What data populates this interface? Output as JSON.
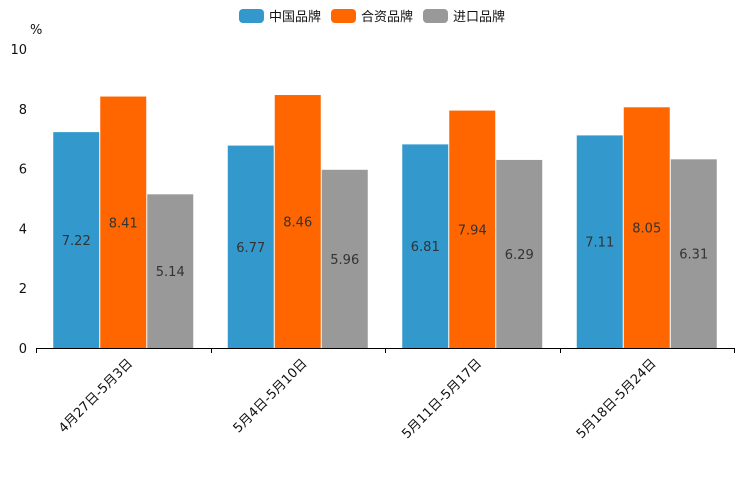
{
  "chart_data": {
    "type": "bar",
    "title": "",
    "xlabel": "",
    "ylabel": "",
    "unit": "%",
    "ylim": [
      0,
      10
    ],
    "yticks": [
      0,
      2,
      4,
      6,
      8,
      10
    ],
    "grid": false,
    "legend_position": "top-center",
    "categories": [
      "4月27日-5月3日",
      "5月4日-5月10日",
      "5月11日-5月17日",
      "5月18日-5月24日"
    ],
    "series": [
      {
        "name": "中国品牌",
        "color": "#3399cc",
        "values": [
          7.22,
          6.77,
          6.81,
          7.11
        ],
        "labels": [
          "7.22",
          "6.77",
          "6.81",
          "7.11"
        ]
      },
      {
        "name": "合资品牌",
        "color": "#ff6600",
        "values": [
          8.41,
          8.46,
          7.94,
          8.05
        ],
        "labels": [
          "8.41",
          "8.46",
          "7.94",
          "8.05"
        ]
      },
      {
        "name": "进口品牌",
        "color": "#999999",
        "values": [
          5.14,
          5.96,
          6.29,
          6.31
        ],
        "labels": [
          "5.14",
          "5.96",
          "6.29",
          "6.31"
        ]
      }
    ]
  }
}
